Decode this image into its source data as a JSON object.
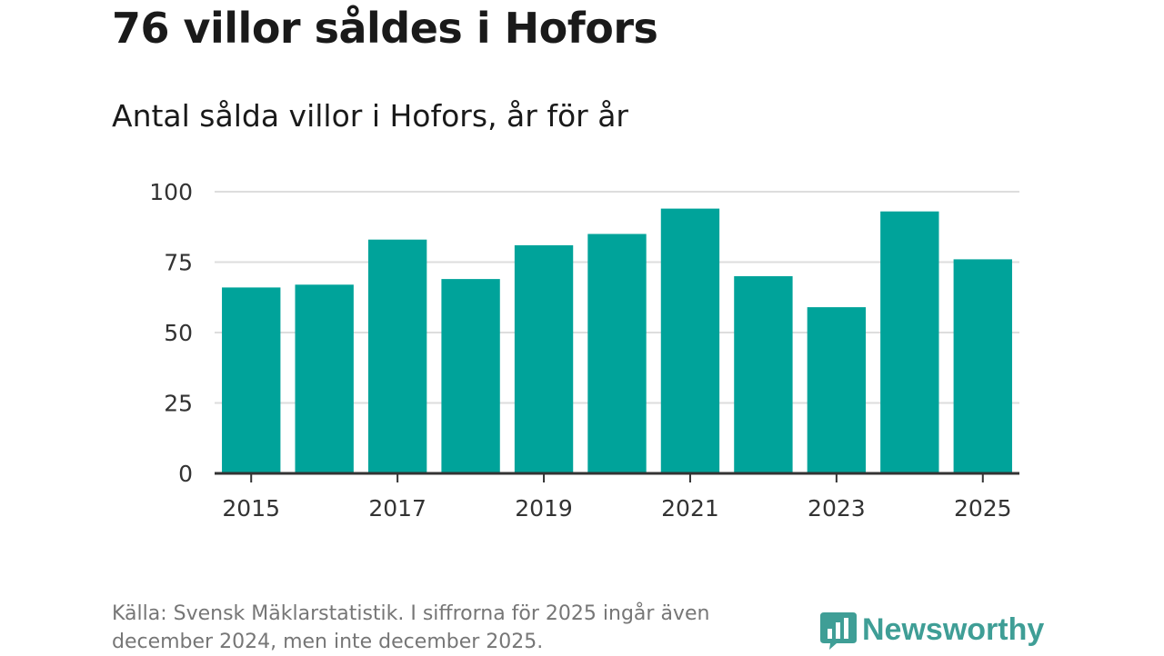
{
  "header": {
    "title": "76 villor såldes i Hofors",
    "subtitle": "Antal sålda villor i Hofors, år för år"
  },
  "footer": {
    "source": "Källa: Svensk Mäklarstatistik. I siffrorna för 2025 ingår även december 2024, men inte december 2025."
  },
  "logo": {
    "text": "Newsworthy"
  },
  "colors": {
    "bar": "#00a39a",
    "grid": "#dddddd",
    "axis": "#333333",
    "brand": "#3f9e96"
  },
  "chart_data": {
    "type": "bar",
    "title": "Antal sålda villor i Hofors, år för år",
    "categories": [
      "2015",
      "2016",
      "2017",
      "2018",
      "2019",
      "2020",
      "2021",
      "2022",
      "2023",
      "2024",
      "2025"
    ],
    "values": [
      66,
      67,
      83,
      69,
      81,
      85,
      94,
      70,
      59,
      93,
      76
    ],
    "x_tick_labels": [
      "2015",
      "2017",
      "2019",
      "2021",
      "2023",
      "2025"
    ],
    "y_ticks": [
      0,
      25,
      50,
      75,
      100
    ],
    "ylim": [
      0,
      100
    ],
    "xlabel": "",
    "ylabel": "",
    "grid": true
  }
}
